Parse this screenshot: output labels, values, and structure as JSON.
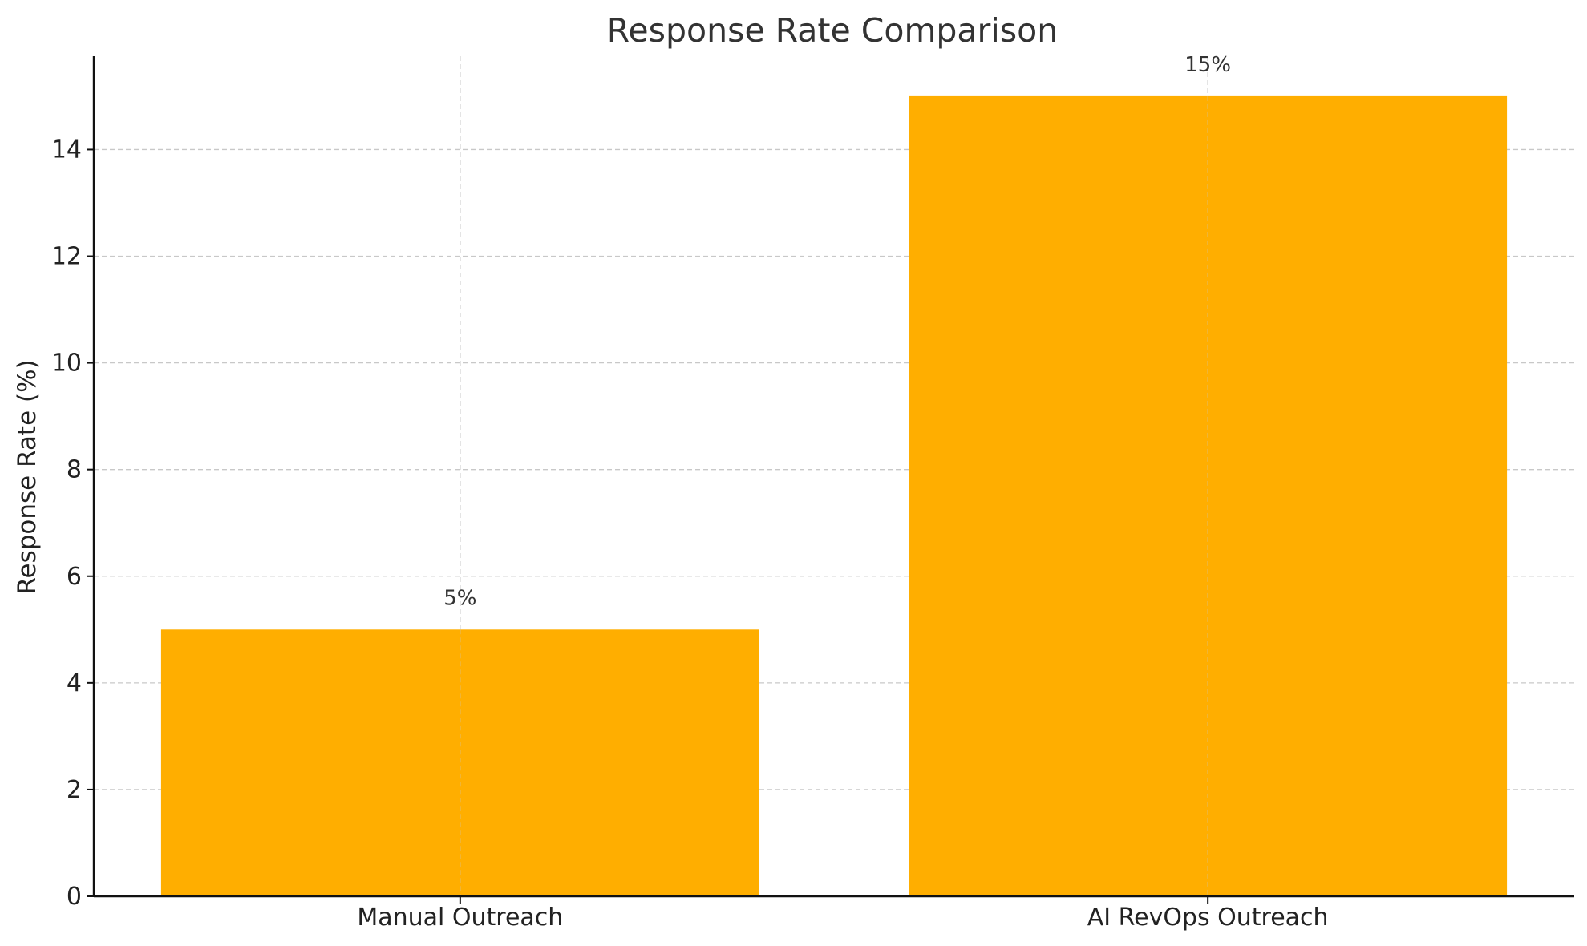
{
  "chart_data": {
    "type": "bar",
    "title": "Response Rate Comparison",
    "xlabel": "",
    "ylabel": "Response Rate (%)",
    "categories": [
      "Manual Outreach",
      "AI RevOps Outreach"
    ],
    "values": [
      5,
      15
    ],
    "data_labels": [
      "5%",
      "15%"
    ],
    "ylim": [
      0,
      15.75
    ],
    "yticks": [
      0,
      2,
      4,
      6,
      8,
      10,
      12,
      14
    ],
    "grid": true,
    "legend": "none",
    "colors": {
      "bar": "#FFAE00",
      "text": "#222222",
      "grid": "#C8C8C8"
    }
  }
}
